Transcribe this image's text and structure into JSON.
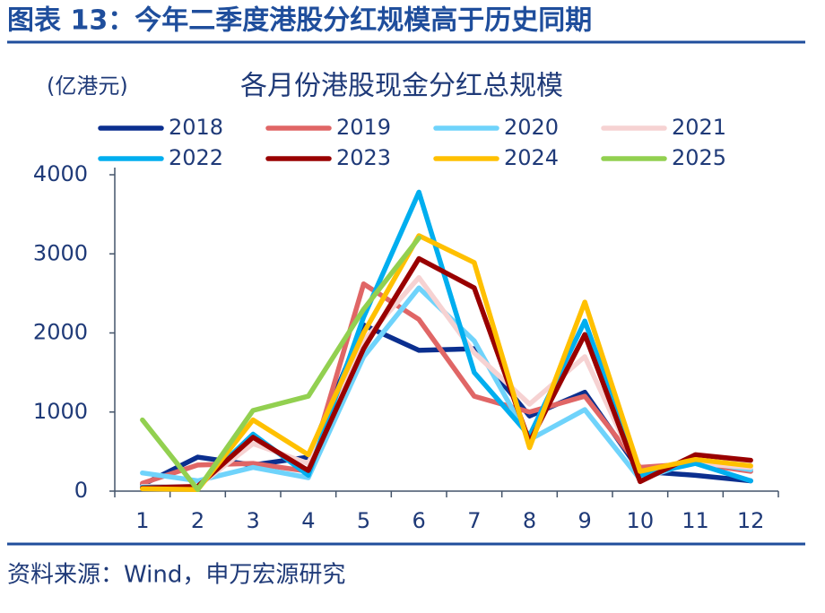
{
  "header": {
    "title": "图表 13：今年二季度港股分红规模高于历史同期"
  },
  "chart_data": {
    "type": "line",
    "title": "各月份港股现金分红总规模",
    "y_label": "(亿港元)",
    "categories": [
      "1",
      "2",
      "3",
      "4",
      "5",
      "6",
      "7",
      "8",
      "9",
      "10",
      "11",
      "12"
    ],
    "series": [
      {
        "name": "2018",
        "color": "#0b2f8f",
        "values": [
          80,
          430,
          330,
          430,
          2100,
          1780,
          1800,
          950,
          1250,
          250,
          200,
          130
        ]
      },
      {
        "name": "2019",
        "color": "#e06666",
        "values": [
          100,
          330,
          350,
          250,
          2620,
          2170,
          1200,
          1000,
          1200,
          300,
          350,
          250
        ]
      },
      {
        "name": "2020",
        "color": "#6fd3fb",
        "values": [
          230,
          130,
          300,
          170,
          1700,
          2570,
          1900,
          650,
          1030,
          150,
          380,
          270
        ]
      },
      {
        "name": "2021",
        "color": "#f6d2d2",
        "values": [
          60,
          60,
          600,
          350,
          1900,
          2700,
          1750,
          1100,
          1700,
          200,
          350,
          300
        ]
      },
      {
        "name": "2022",
        "color": "#00aeef",
        "values": [
          50,
          50,
          720,
          200,
          2200,
          3780,
          1500,
          700,
          2150,
          200,
          350,
          130
        ]
      },
      {
        "name": "2023",
        "color": "#990000",
        "values": [
          40,
          60,
          680,
          260,
          1800,
          2940,
          2570,
          620,
          1980,
          120,
          460,
          390
        ]
      },
      {
        "name": "2024",
        "color": "#ffc000",
        "values": [
          30,
          20,
          900,
          460,
          2000,
          3230,
          2890,
          550,
          2390,
          250,
          400,
          320
        ]
      },
      {
        "name": "2025",
        "color": "#92d050",
        "values": [
          900,
          20,
          1020,
          1200,
          2300,
          3200,
          null,
          null,
          null,
          null,
          null,
          null
        ]
      }
    ],
    "ylim": [
      0,
      4000
    ],
    "yticks": [
      0,
      1000,
      2000,
      3000,
      4000
    ]
  },
  "footer": {
    "source": "资料来源：Wind，申万宏源研究"
  }
}
